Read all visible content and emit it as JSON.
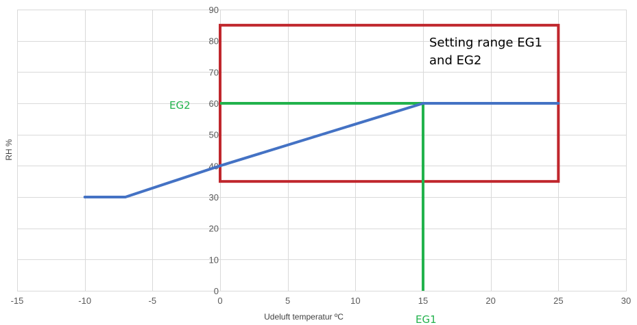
{
  "chart_data": {
    "type": "line",
    "xlabel": "Udeluft temperatur ºC",
    "ylabel": "RH %",
    "xlim": [
      -15,
      30
    ],
    "ylim": [
      0,
      90
    ],
    "x_ticks": [
      -15,
      -10,
      -5,
      0,
      5,
      10,
      15,
      20,
      25,
      30
    ],
    "y_ticks": [
      0,
      10,
      20,
      30,
      40,
      50,
      60,
      70,
      80,
      90
    ],
    "grid": true,
    "series": [
      {
        "color": "#4472c4",
        "points": [
          [
            -10,
            30
          ],
          [
            -7.5,
            30
          ],
          [
            -7,
            30
          ],
          [
            0,
            40
          ],
          [
            15,
            60
          ],
          [
            25,
            60
          ]
        ]
      }
    ],
    "annotations": {
      "range_box": {
        "x": [
          0,
          25
        ],
        "y": [
          35,
          85
        ],
        "color": "#c0272d",
        "text_line1": "Setting range EG1",
        "text_line2": "and EG2"
      },
      "eg2": {
        "label": "EG2",
        "y": 60,
        "x_from": 0,
        "x_to": 15,
        "color": "#22b24c"
      },
      "eg1": {
        "label": "EG1",
        "x": 15,
        "y_from": 0,
        "y_to": 60,
        "color": "#22b24c"
      }
    }
  }
}
